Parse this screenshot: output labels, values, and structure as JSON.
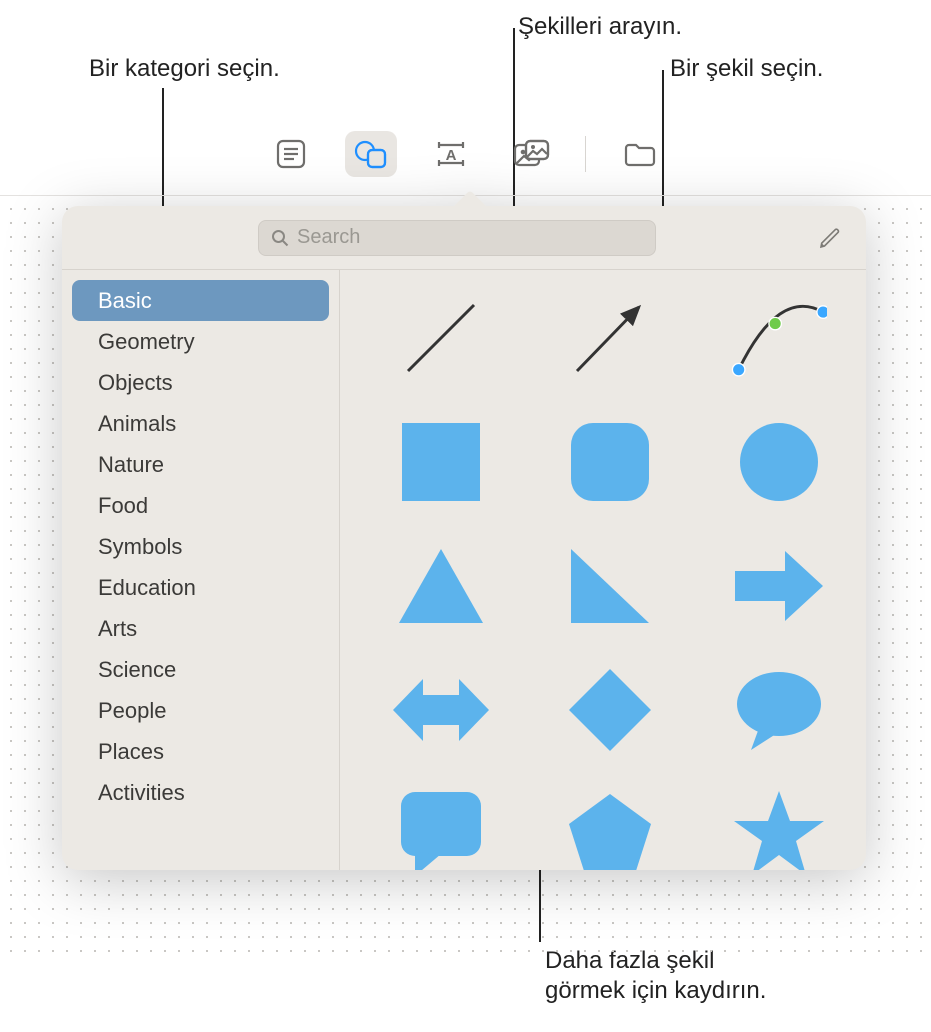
{
  "callouts": {
    "search": "Şekilleri arayın.",
    "category": "Bir kategori seçin.",
    "shape": "Bir şekil seçin.",
    "scroll": "Daha fazla şekil\ngörmek için kaydırın."
  },
  "toolbar": {
    "items": [
      {
        "name": "text-page-icon",
        "active": false
      },
      {
        "name": "shapes-icon",
        "active": true
      },
      {
        "name": "textbox-icon",
        "active": false
      },
      {
        "name": "media-icon",
        "active": false
      },
      {
        "name": "folder-icon",
        "active": false
      }
    ]
  },
  "search": {
    "placeholder": "Search"
  },
  "sidebar": {
    "categories": [
      {
        "label": "Basic",
        "selected": true
      },
      {
        "label": "Geometry",
        "selected": false
      },
      {
        "label": "Objects",
        "selected": false
      },
      {
        "label": "Animals",
        "selected": false
      },
      {
        "label": "Nature",
        "selected": false
      },
      {
        "label": "Food",
        "selected": false
      },
      {
        "label": "Symbols",
        "selected": false
      },
      {
        "label": "Education",
        "selected": false
      },
      {
        "label": "Arts",
        "selected": false
      },
      {
        "label": "Science",
        "selected": false
      },
      {
        "label": "People",
        "selected": false
      },
      {
        "label": "Places",
        "selected": false
      },
      {
        "label": "Activities",
        "selected": false
      }
    ]
  },
  "shapes": {
    "fill": "#5cb3ec",
    "stroke": "#333333",
    "items": [
      {
        "name": "line-shape",
        "type": "line"
      },
      {
        "name": "arrow-line-shape",
        "type": "arrow-line"
      },
      {
        "name": "curve-shape",
        "type": "curve"
      },
      {
        "name": "square-shape",
        "type": "square"
      },
      {
        "name": "rounded-square-shape",
        "type": "rounded-square"
      },
      {
        "name": "circle-shape",
        "type": "circle"
      },
      {
        "name": "triangle-shape",
        "type": "triangle"
      },
      {
        "name": "right-triangle-shape",
        "type": "right-triangle"
      },
      {
        "name": "right-arrow-shape",
        "type": "right-arrow"
      },
      {
        "name": "double-arrow-shape",
        "type": "double-arrow"
      },
      {
        "name": "diamond-shape",
        "type": "diamond"
      },
      {
        "name": "speech-bubble-shape",
        "type": "speech-bubble"
      },
      {
        "name": "callout-rect-shape",
        "type": "callout-rect"
      },
      {
        "name": "pentagon-shape",
        "type": "pentagon"
      },
      {
        "name": "star-shape",
        "type": "star"
      }
    ]
  },
  "colors": {
    "popover_bg": "#ece9e4",
    "sidebar_selected": "#6d98bf",
    "curve_handle_green": "#6fcb4a",
    "curve_handle_blue": "#3aa7ff"
  }
}
